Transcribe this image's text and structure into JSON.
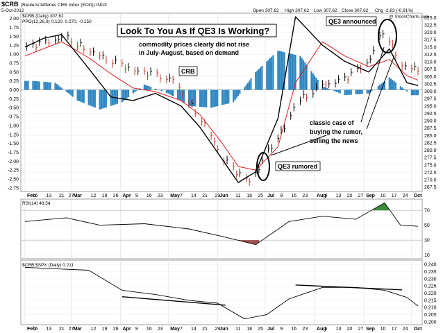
{
  "header": {
    "symbol": "$CRB",
    "name": "(Reuters/Jefferies CRB Index (EOD)) INDX",
    "date": "5-Oct-2012",
    "open": "Open 307.62",
    "high": "High 307.62",
    "low": "Low 307.62",
    "close": "Close 307.62",
    "chg": "Chg -2.83 (-0.91%)",
    "watermark": "@ StockCharts.com"
  },
  "colors": {
    "crb_line": "#000000",
    "ppo_line": "#000000",
    "signal_line": "#e31a1c",
    "histogram": "#2e86c1",
    "bar_up": "#000000",
    "bar_down": "#c0392b",
    "rsi_overbought_fill": "#3a8a3a",
    "rsi_oversold_fill": "#a0524f"
  },
  "chart_data": [
    {
      "type": "line",
      "panel": "main",
      "legend": [
        "$CRB (Daily) 307.62",
        "PPO(12,26,9) 0.120, 0.270, -0.150"
      ],
      "x_labels": [
        "Feb",
        "6",
        "13",
        "21",
        "27",
        "Mar",
        "12",
        "19",
        "26",
        "Apr",
        "9",
        "16",
        "23",
        "May",
        "7",
        "14",
        "21",
        "29",
        "Jun",
        "11",
        "18",
        "25",
        "Jul",
        "9",
        "16",
        "23",
        "Aug",
        "6",
        "13",
        "20",
        "27",
        "Sep",
        "10",
        "17",
        "24",
        "Oct"
      ],
      "x_start": "2012-02-01",
      "x_end": "2012-10-05",
      "right_axis": {
        "ylim": [
          266.0,
          326.5
        ],
        "ticks": [
          267.5,
          270.0,
          272.5,
          275.0,
          277.5,
          280.0,
          282.5,
          285.0,
          287.5,
          290.0,
          292.5,
          295.0,
          297.5,
          300.0,
          302.5,
          305.0,
          307.5,
          310.0,
          312.5,
          315.0,
          317.5,
          320.0,
          322.5,
          325.0
        ]
      },
      "left_axis": {
        "ylim": [
          -2.85,
          2.15
        ],
        "ticks": [
          -2.75,
          -2.5,
          -2.25,
          -2.0,
          -1.75,
          -1.5,
          -1.25,
          -1.0,
          -0.75,
          -0.5,
          -0.25,
          0.0,
          0.25,
          0.5,
          0.75,
          1.0,
          1.25,
          1.5,
          1.75,
          2.0
        ]
      },
      "crb_closes": {
        "x": [
          "2012-02-01",
          "2012-02-13",
          "2012-02-27",
          "2012-03-12",
          "2012-03-26",
          "2012-04-09",
          "2012-04-23",
          "2012-05-04",
          "2012-05-14",
          "2012-05-25",
          "2012-06-04",
          "2012-06-14",
          "2012-06-22",
          "2012-06-27",
          "2012-07-06",
          "2012-07-16",
          "2012-07-20",
          "2012-08-06",
          "2012-08-20",
          "2012-09-04",
          "2012-09-14",
          "2012-09-24",
          "2012-10-05"
        ],
        "y": [
          314.5,
          316.5,
          318.5,
          314.0,
          310.5,
          307.0,
          305.5,
          304.0,
          296.5,
          288.0,
          277.5,
          272.0,
          269.0,
          274.0,
          282.5,
          290.0,
          296.5,
          302.0,
          304.0,
          310.0,
          321.5,
          309.0,
          307.6
        ]
      },
      "series": [
        {
          "name": "PPO(12,26,9)",
          "axis": "left",
          "x": [
            "2012-02-01",
            "2012-02-13",
            "2012-02-24",
            "2012-03-12",
            "2012-03-26",
            "2012-04-09",
            "2012-04-23",
            "2012-05-09",
            "2012-05-21",
            "2012-06-04",
            "2012-06-14",
            "2012-06-25",
            "2012-07-09",
            "2012-07-20",
            "2012-08-06",
            "2012-08-20",
            "2012-09-04",
            "2012-09-17",
            "2012-09-28",
            "2012-10-05"
          ],
          "y": [
            1.2,
            1.45,
            1.55,
            0.6,
            -0.2,
            -0.3,
            -0.1,
            -0.45,
            -1.05,
            -1.95,
            -2.6,
            -2.3,
            -0.8,
            2.05,
            1.25,
            0.8,
            0.5,
            1.15,
            0.2,
            0.12
          ]
        },
        {
          "name": "Signal",
          "axis": "left",
          "x": [
            "2012-02-01",
            "2012-02-24",
            "2012-03-12",
            "2012-03-26",
            "2012-04-09",
            "2012-04-23",
            "2012-05-09",
            "2012-05-21",
            "2012-06-04",
            "2012-06-14",
            "2012-06-25",
            "2012-07-09",
            "2012-07-20",
            "2012-08-06",
            "2012-08-20",
            "2012-09-04",
            "2012-09-17",
            "2012-09-28",
            "2012-10-05"
          ],
          "y": [
            0.95,
            1.35,
            0.9,
            0.45,
            0.05,
            -0.05,
            -0.3,
            -0.7,
            -1.5,
            -2.15,
            -2.25,
            -1.6,
            0.2,
            1.35,
            0.95,
            0.65,
            0.85,
            0.4,
            0.27
          ]
        }
      ],
      "histogram": {
        "x": [
          "2012-02-06",
          "2012-02-20",
          "2012-03-05",
          "2012-03-19",
          "2012-04-02",
          "2012-04-16",
          "2012-05-01",
          "2012-05-14",
          "2012-05-28",
          "2012-06-11",
          "2012-06-25",
          "2012-07-09",
          "2012-07-23",
          "2012-08-06",
          "2012-08-20",
          "2012-09-04",
          "2012-09-17",
          "2012-10-01"
        ],
        "y": [
          0.25,
          0.2,
          -0.3,
          -0.55,
          -0.35,
          0.15,
          -0.1,
          -0.45,
          -0.5,
          -0.35,
          0.5,
          1.1,
          0.95,
          0.1,
          -0.15,
          -0.1,
          0.35,
          -0.15
        ]
      },
      "annotations": [
        {
          "text": "Look To You As If QE3 Is Working?"
        },
        {
          "text": "commodity prices clearly did not rise"
        },
        {
          "text": "in July-August, based on demand"
        },
        {
          "text": "CRB"
        },
        {
          "text": "QE3 announced"
        },
        {
          "text": "QE3 rumored"
        },
        {
          "text": "classic case of"
        },
        {
          "text": "buying the rumor,"
        },
        {
          "text": "selling the news"
        }
      ]
    },
    {
      "type": "line",
      "panel": "rsi",
      "legend": "RSI(14) 48.54",
      "ylim": [
        5,
        85
      ],
      "ticks": [
        10,
        30,
        50,
        70
      ],
      "x": [
        "2012-02-01",
        "2012-02-27",
        "2012-03-19",
        "2012-04-16",
        "2012-05-14",
        "2012-06-04",
        "2012-06-25",
        "2012-07-16",
        "2012-08-06",
        "2012-08-27",
        "2012-09-14",
        "2012-09-24",
        "2012-10-05"
      ],
      "y": [
        55,
        60,
        50,
        52,
        45,
        35,
        24,
        55,
        62,
        58,
        80,
        50,
        48.5
      ]
    },
    {
      "type": "line",
      "panel": "ratio",
      "legend": "$CRB:$SPX (Daily) 0.211",
      "ylim": [
        0.198,
        0.243
      ],
      "ticks": [
        0.2,
        0.205,
        0.21,
        0.215,
        0.22,
        0.225,
        0.23,
        0.235,
        0.24
      ],
      "x": [
        "2012-02-01",
        "2012-02-20",
        "2012-03-12",
        "2012-04-02",
        "2012-04-23",
        "2012-05-14",
        "2012-06-01",
        "2012-06-18",
        "2012-07-02",
        "2012-07-16",
        "2012-08-06",
        "2012-08-27",
        "2012-09-14",
        "2012-09-28",
        "2012-10-05"
      ],
      "y": [
        0.238,
        0.237,
        0.236,
        0.222,
        0.219,
        0.215,
        0.213,
        0.202,
        0.205,
        0.216,
        0.224,
        0.224,
        0.222,
        0.217,
        0.211
      ],
      "trendlines": [
        {
          "x": [
            "2012-04-02",
            "2012-06-06"
          ],
          "y": [
            0.2175,
            0.2116
          ]
        },
        {
          "x": [
            "2012-07-20",
            "2012-09-25"
          ],
          "y": [
            0.2257,
            0.2223
          ]
        }
      ]
    }
  ]
}
